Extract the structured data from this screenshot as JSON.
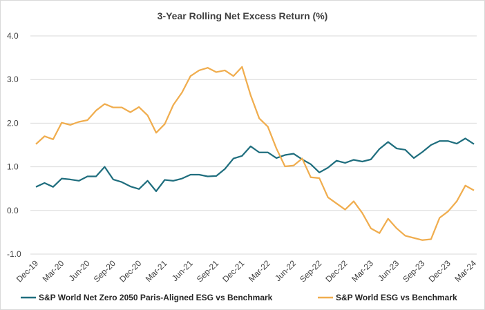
{
  "chart_data": {
    "type": "line",
    "title": "3-Year Rolling Net Excess Return (%)",
    "categories": [
      "Dec-19",
      null,
      null,
      "Mar-20",
      null,
      null,
      "Jun-20",
      null,
      null,
      "Sep-20",
      null,
      null,
      "Dec-20",
      null,
      null,
      "Mar-21",
      null,
      null,
      "Jun-21",
      null,
      null,
      "Sep-21",
      null,
      null,
      "Dec-21",
      null,
      null,
      "Mar-22",
      null,
      null,
      "Jun-22",
      null,
      null,
      "Sep-22",
      null,
      null,
      "Dec-22",
      null,
      null,
      "Mar-23",
      null,
      null,
      "Jun-23",
      null,
      null,
      "Sep-23",
      null,
      null,
      "Dec-23",
      null,
      null,
      "Mar-24"
    ],
    "series": [
      {
        "name": "S&P World Net Zero 2050 Paris-Aligned ESG vs Benchmark",
        "color": "#1f6e7e",
        "values": [
          0.54,
          0.63,
          0.54,
          0.73,
          0.71,
          0.68,
          0.78,
          0.78,
          1.0,
          0.71,
          0.65,
          0.55,
          0.49,
          0.68,
          0.44,
          0.7,
          0.68,
          0.73,
          0.82,
          0.82,
          0.78,
          0.79,
          0.95,
          1.19,
          1.25,
          1.47,
          1.33,
          1.33,
          1.2,
          1.27,
          1.3,
          1.17,
          1.06,
          0.87,
          0.98,
          1.14,
          1.09,
          1.16,
          1.12,
          1.17,
          1.41,
          1.57,
          1.42,
          1.39,
          1.2,
          1.34,
          1.5,
          1.59,
          1.59,
          1.53,
          1.65,
          1.52
        ]
      },
      {
        "name": "S&P World ESG vs Benchmark",
        "color": "#f0ad4e",
        "values": [
          1.52,
          1.7,
          1.63,
          2.01,
          1.96,
          2.03,
          2.07,
          2.29,
          2.44,
          2.36,
          2.36,
          2.25,
          2.37,
          2.18,
          1.78,
          1.98,
          2.42,
          2.7,
          3.08,
          3.21,
          3.27,
          3.17,
          3.21,
          3.08,
          3.29,
          2.64,
          2.11,
          1.92,
          1.42,
          1.01,
          1.03,
          1.19,
          0.76,
          0.74,
          0.3,
          0.16,
          0.02,
          0.21,
          -0.06,
          -0.41,
          -0.52,
          -0.19,
          -0.41,
          -0.58,
          -0.63,
          -0.68,
          -0.66,
          -0.17,
          -0.02,
          0.21,
          0.57,
          0.46
        ]
      }
    ],
    "ylim": [
      -1,
      4
    ],
    "yticks": [
      {
        "value": -1,
        "label": "-1.0"
      },
      {
        "value": 0,
        "label": "0.0"
      },
      {
        "value": 1,
        "label": "1.0"
      },
      {
        "value": 2,
        "label": "2.0"
      },
      {
        "value": 3,
        "label": "3.0"
      },
      {
        "value": 4,
        "label": "4.0"
      }
    ],
    "grid": true,
    "legend": "bottom"
  }
}
